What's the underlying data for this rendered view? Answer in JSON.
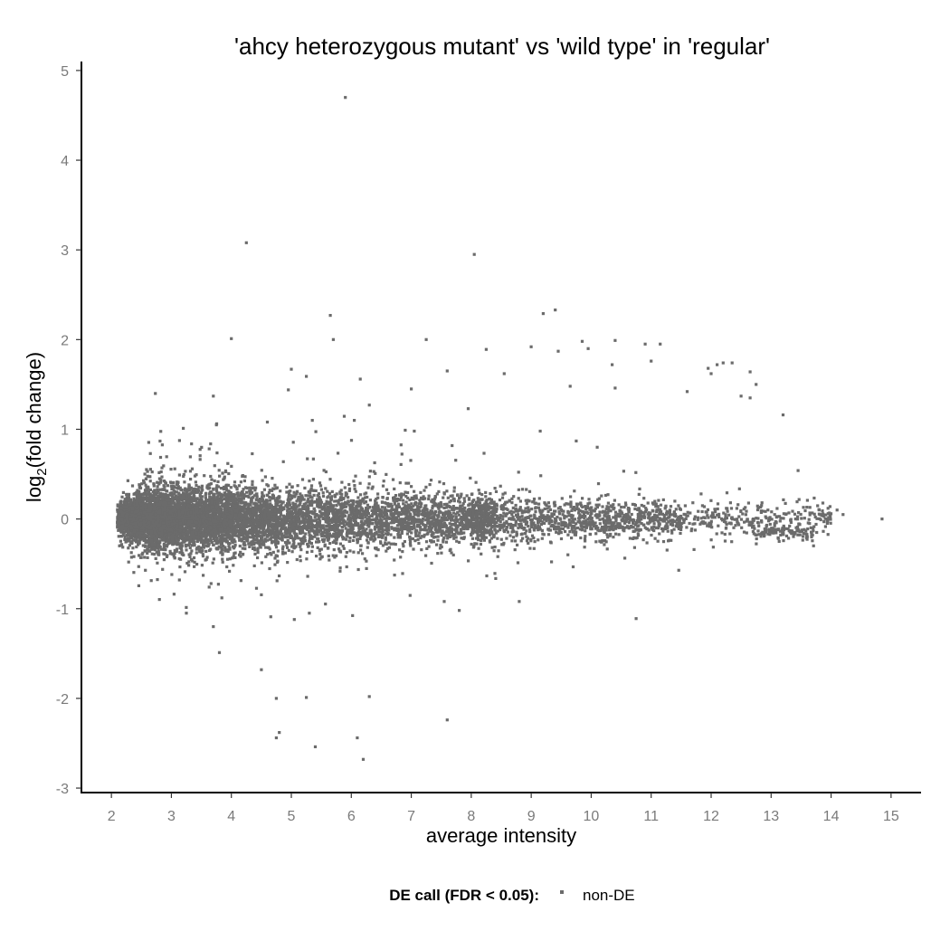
{
  "chart_data": {
    "type": "scatter",
    "title": "'ahcy heterozygous mutant' vs 'wild type' in 'regular'",
    "xlabel": "average intensity",
    "ylabel": {
      "prefix": "log",
      "subscript": "2",
      "suffix": "(fold change)"
    },
    "xlim": [
      1.5,
      15.5
    ],
    "ylim": [
      -3.05,
      5.1
    ],
    "x_ticks": [
      2,
      3,
      4,
      5,
      6,
      7,
      8,
      9,
      10,
      11,
      12,
      13,
      14,
      15
    ],
    "y_ticks": [
      -3,
      -2,
      -1,
      0,
      1,
      2,
      3,
      4,
      5
    ],
    "grid": false,
    "legend": {
      "position": "bottom",
      "title": "DE call (FDR < 0.05):",
      "entries": [
        {
          "label": "non-DE",
          "color": "#6b6b6b"
        }
      ]
    },
    "series": [
      {
        "name": "non-DE",
        "color": "#6b6b6b",
        "cloud_note": "dense band of ~20000 genes centred near 0, widest at low intensity",
        "outliers": [
          [
            5.9,
            4.7
          ],
          [
            4.25,
            3.08
          ],
          [
            8.05,
            2.95
          ],
          [
            5.65,
            2.27
          ],
          [
            4.0,
            2.01
          ],
          [
            5.7,
            2.0
          ],
          [
            7.25,
            2.0
          ],
          [
            9.2,
            2.29
          ],
          [
            9.4,
            2.33
          ],
          [
            9.0,
            1.92
          ],
          [
            9.85,
            1.98
          ],
          [
            10.4,
            1.99
          ],
          [
            8.25,
            1.89
          ],
          [
            9.45,
            1.87
          ],
          [
            9.95,
            1.9
          ],
          [
            10.9,
            1.95
          ],
          [
            11.15,
            1.95
          ],
          [
            11.0,
            1.76
          ],
          [
            10.35,
            1.72
          ],
          [
            12.1,
            1.72
          ],
          [
            12.2,
            1.74
          ],
          [
            12.35,
            1.74
          ],
          [
            11.95,
            1.68
          ],
          [
            12.0,
            1.62
          ],
          [
            12.65,
            1.64
          ],
          [
            12.75,
            1.5
          ],
          [
            12.5,
            1.37
          ],
          [
            12.65,
            1.35
          ],
          [
            11.6,
            1.42
          ],
          [
            13.2,
            1.16
          ],
          [
            5.0,
            1.67
          ],
          [
            5.25,
            1.59
          ],
          [
            6.15,
            1.56
          ],
          [
            7.6,
            1.65
          ],
          [
            8.55,
            1.62
          ],
          [
            9.65,
            1.48
          ],
          [
            10.4,
            1.46
          ],
          [
            3.7,
            1.37
          ],
          [
            4.95,
            1.44
          ],
          [
            7.0,
            1.45
          ],
          [
            6.3,
            1.27
          ],
          [
            7.95,
            1.23
          ],
          [
            4.6,
            1.08
          ],
          [
            5.35,
            1.1
          ],
          [
            6.05,
            1.1
          ],
          [
            6.9,
            0.99
          ],
          [
            7.05,
            0.98
          ],
          [
            9.15,
            0.98
          ],
          [
            9.75,
            0.87
          ],
          [
            10.1,
            0.8
          ],
          [
            13.45,
            0.54
          ],
          [
            3.25,
            -1.05
          ],
          [
            3.7,
            -1.2
          ],
          [
            3.8,
            -1.49
          ],
          [
            4.5,
            -1.68
          ],
          [
            4.75,
            -2.0
          ],
          [
            5.25,
            -1.99
          ],
          [
            6.3,
            -1.98
          ],
          [
            4.8,
            -2.38
          ],
          [
            4.75,
            -2.44
          ],
          [
            5.4,
            -2.54
          ],
          [
            6.1,
            -2.44
          ],
          [
            6.2,
            -2.68
          ],
          [
            7.6,
            -2.24
          ],
          [
            10.75,
            -1.11
          ],
          [
            5.05,
            -1.12
          ],
          [
            5.3,
            -1.05
          ],
          [
            7.55,
            -0.92
          ],
          [
            7.8,
            -1.02
          ],
          [
            8.8,
            -0.92
          ],
          [
            14.85,
            0.0
          ],
          [
            14.2,
            0.05
          ],
          [
            14.1,
            0.1
          ],
          [
            13.95,
            0.06
          ]
        ]
      }
    ]
  }
}
